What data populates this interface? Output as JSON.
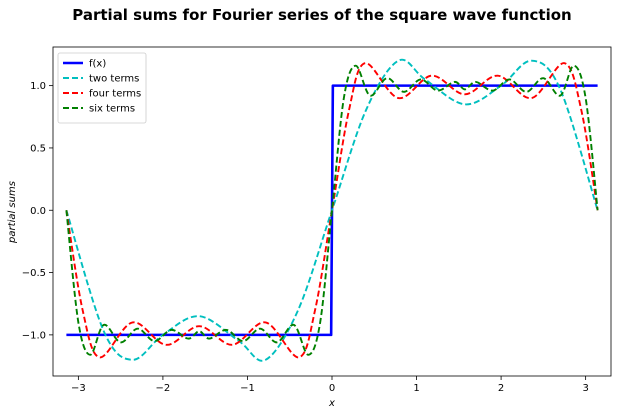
{
  "chart_data": {
    "type": "line",
    "title": "Partial sums for Fourier series of the square wave function",
    "xlabel": "x",
    "ylabel": "partial sums",
    "xlim": [
      -3.3,
      3.3
    ],
    "ylim": [
      -1.33,
      1.31
    ],
    "xticks": [
      -3,
      -2,
      -1,
      0,
      1,
      2,
      3
    ],
    "xtick_labels": [
      "−3",
      "−2",
      "−1",
      "0",
      "1",
      "2",
      "3"
    ],
    "yticks": [
      -1.0,
      -0.5,
      0.0,
      0.5,
      1.0
    ],
    "ytick_labels": [
      "−1.0",
      "−0.5",
      "0.0",
      "0.5",
      "1.0"
    ],
    "grid": false,
    "legend_position": "upper-left",
    "series": [
      {
        "name": "f(x)",
        "color": "#0000ff",
        "dash": "solid",
        "x": [
          -3.1416,
          -0.01,
          0.0,
          0.01,
          3.1416
        ],
        "y": [
          -1.0,
          -1.0,
          0.0,
          1.0,
          1.0
        ]
      },
      {
        "name": "two terms",
        "color": "#00bfbf",
        "dash": "dashed",
        "x": [
          -3.1416,
          -2.7,
          -2.36,
          -2.0,
          -1.571,
          -1.1,
          -0.785,
          -0.4,
          0.0,
          0.4,
          0.785,
          1.1,
          1.571,
          2.0,
          2.36,
          2.7,
          3.1416
        ],
        "y": [
          0.0,
          -0.97,
          -1.2,
          -1.0,
          -0.85,
          -1.05,
          -1.2,
          -0.8,
          0.0,
          0.8,
          1.2,
          1.05,
          0.85,
          1.0,
          1.2,
          0.97,
          0.0
        ]
      },
      {
        "name": "four terms",
        "color": "#ff0000",
        "dash": "dashed",
        "x": [
          -3.1416,
          -2.95,
          -2.75,
          -2.36,
          -1.96,
          -1.571,
          -1.18,
          -0.785,
          -0.39,
          -0.2,
          0.0,
          0.2,
          0.39,
          0.785,
          1.18,
          1.571,
          1.96,
          2.36,
          2.75,
          2.95,
          3.1416
        ],
        "y": [
          0.0,
          -0.8,
          -1.18,
          -0.9,
          -1.08,
          -0.93,
          -1.08,
          -0.9,
          -1.18,
          -0.8,
          0.0,
          0.8,
          1.18,
          0.9,
          1.08,
          0.93,
          1.08,
          0.9,
          1.18,
          0.8,
          0.0
        ],
        "note": ""
      },
      {
        "name": "six terms",
        "color": "#008000",
        "dash": "dashed",
        "x": [
          -3.1416,
          -3.0,
          -2.86,
          -2.7,
          -2.5,
          -2.3,
          -2.1,
          -1.9,
          -1.7,
          -1.571,
          -1.45,
          -1.25,
          -1.05,
          -0.85,
          -0.65,
          -0.45,
          -0.28,
          -0.14,
          0.0,
          0.14,
          0.28,
          0.45,
          0.65,
          0.85,
          1.05,
          1.25,
          1.45,
          1.571,
          1.7,
          1.9,
          2.1,
          2.3,
          2.5,
          2.7,
          2.86,
          3.0,
          3.1416
        ],
        "y": [
          0.0,
          -0.9,
          -1.16,
          -0.92,
          -1.06,
          -0.95,
          -1.05,
          -0.96,
          -1.03,
          -0.97,
          -1.03,
          -0.96,
          -1.05,
          -0.95,
          -1.06,
          -0.92,
          -1.16,
          -0.9,
          0.0,
          0.9,
          1.16,
          0.92,
          1.06,
          0.95,
          1.05,
          0.96,
          1.03,
          0.97,
          1.03,
          0.96,
          1.05,
          0.95,
          1.06,
          0.92,
          1.16,
          0.9,
          0.0
        ]
      }
    ]
  }
}
